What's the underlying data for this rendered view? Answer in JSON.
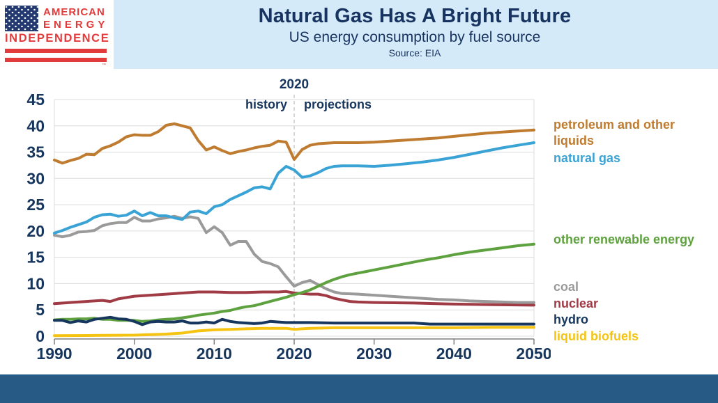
{
  "header": {
    "title": "Natural Gas Has A Bright Future",
    "subtitle": "US energy consumption by fuel source",
    "source": "Source: EIA",
    "background_color": "#d5eaf9",
    "title_color": "#17335f"
  },
  "logo": {
    "line1": "AMERICAN",
    "line2": "ENERGY",
    "line3": "INDEPENDENCE",
    "trademark": "™",
    "red": "#e23b3c",
    "navy": "#233a70"
  },
  "annotations": {
    "year_label": "2020",
    "left_label": "history",
    "right_label": "projections"
  },
  "footer": {
    "bar_color": "#275a84"
  },
  "chart_data": {
    "type": "line",
    "title": "US energy consumption by fuel source",
    "source": "Source: EIA",
    "xlabel": "",
    "ylabel": "",
    "xlim": [
      1990,
      2050
    ],
    "ylim": [
      0,
      45
    ],
    "x_ticks": [
      1990,
      2000,
      2010,
      2020,
      2030,
      2040,
      2050
    ],
    "y_ticks": [
      0,
      5,
      10,
      15,
      20,
      25,
      30,
      35,
      40,
      45
    ],
    "grid": "horizontal",
    "grid_color": "#dcdcdc",
    "axis_color": "#7f7f7f",
    "divider_x": 2020,
    "divider_color": "#c3c3c3",
    "legend_position": "right",
    "series": [
      {
        "name": "petroleum and other liquids",
        "color": "#bf7b2f",
        "points": [
          [
            1990,
            33.5
          ],
          [
            1991,
            32.9
          ],
          [
            1992,
            33.4
          ],
          [
            1993,
            33.8
          ],
          [
            1994,
            34.6
          ],
          [
            1995,
            34.5
          ],
          [
            1996,
            35.7
          ],
          [
            1997,
            36.2
          ],
          [
            1998,
            36.9
          ],
          [
            1999,
            37.9
          ],
          [
            2000,
            38.3
          ],
          [
            2001,
            38.2
          ],
          [
            2002,
            38.2
          ],
          [
            2003,
            38.9
          ],
          [
            2004,
            40.1
          ],
          [
            2005,
            40.4
          ],
          [
            2006,
            40.0
          ],
          [
            2007,
            39.6
          ],
          [
            2008,
            37.2
          ],
          [
            2009,
            35.4
          ],
          [
            2010,
            36.0
          ],
          [
            2011,
            35.3
          ],
          [
            2012,
            34.7
          ],
          [
            2013,
            35.1
          ],
          [
            2014,
            35.4
          ],
          [
            2015,
            35.8
          ],
          [
            2016,
            36.1
          ],
          [
            2017,
            36.3
          ],
          [
            2018,
            37.1
          ],
          [
            2019,
            36.9
          ],
          [
            2020,
            33.6
          ],
          [
            2021,
            35.5
          ],
          [
            2022,
            36.3
          ],
          [
            2023,
            36.6
          ],
          [
            2024,
            36.7
          ],
          [
            2025,
            36.8
          ],
          [
            2026,
            36.8
          ],
          [
            2028,
            36.8
          ],
          [
            2030,
            36.9
          ],
          [
            2032,
            37.1
          ],
          [
            2034,
            37.3
          ],
          [
            2036,
            37.5
          ],
          [
            2038,
            37.7
          ],
          [
            2040,
            38.0
          ],
          [
            2042,
            38.3
          ],
          [
            2044,
            38.6
          ],
          [
            2046,
            38.8
          ],
          [
            2048,
            39.0
          ],
          [
            2050,
            39.2
          ]
        ]
      },
      {
        "name": "natural gas",
        "color": "#3aa3d5",
        "points": [
          [
            1990,
            19.6
          ],
          [
            1991,
            20.1
          ],
          [
            1992,
            20.7
          ],
          [
            1993,
            21.2
          ],
          [
            1994,
            21.7
          ],
          [
            1995,
            22.6
          ],
          [
            1996,
            23.1
          ],
          [
            1997,
            23.2
          ],
          [
            1998,
            22.8
          ],
          [
            1999,
            23.0
          ],
          [
            2000,
            23.8
          ],
          [
            2001,
            22.9
          ],
          [
            2002,
            23.5
          ],
          [
            2003,
            22.9
          ],
          [
            2004,
            22.9
          ],
          [
            2005,
            22.5
          ],
          [
            2006,
            22.2
          ],
          [
            2007,
            23.6
          ],
          [
            2008,
            23.8
          ],
          [
            2009,
            23.3
          ],
          [
            2010,
            24.6
          ],
          [
            2011,
            25.0
          ],
          [
            2012,
            26.0
          ],
          [
            2013,
            26.7
          ],
          [
            2014,
            27.4
          ],
          [
            2015,
            28.2
          ],
          [
            2016,
            28.4
          ],
          [
            2017,
            28.0
          ],
          [
            2018,
            31.0
          ],
          [
            2019,
            32.3
          ],
          [
            2020,
            31.6
          ],
          [
            2021,
            30.2
          ],
          [
            2022,
            30.5
          ],
          [
            2023,
            31.1
          ],
          [
            2024,
            31.9
          ],
          [
            2025,
            32.3
          ],
          [
            2026,
            32.4
          ],
          [
            2028,
            32.4
          ],
          [
            2030,
            32.3
          ],
          [
            2032,
            32.5
          ],
          [
            2034,
            32.8
          ],
          [
            2036,
            33.1
          ],
          [
            2038,
            33.5
          ],
          [
            2040,
            34.0
          ],
          [
            2042,
            34.6
          ],
          [
            2044,
            35.2
          ],
          [
            2046,
            35.8
          ],
          [
            2048,
            36.3
          ],
          [
            2050,
            36.8
          ]
        ]
      },
      {
        "name": "other renewable energy",
        "color": "#5ea13f",
        "points": [
          [
            1990,
            3.1
          ],
          [
            1991,
            3.2
          ],
          [
            1992,
            3.2
          ],
          [
            1993,
            3.3
          ],
          [
            1994,
            3.3
          ],
          [
            1995,
            3.4
          ],
          [
            1996,
            3.2
          ],
          [
            1997,
            3.2
          ],
          [
            1998,
            3.0
          ],
          [
            1999,
            3.0
          ],
          [
            2000,
            3.0
          ],
          [
            2001,
            2.8
          ],
          [
            2002,
            2.9
          ],
          [
            2003,
            3.1
          ],
          [
            2004,
            3.2
          ],
          [
            2005,
            3.3
          ],
          [
            2006,
            3.5
          ],
          [
            2007,
            3.7
          ],
          [
            2008,
            4.0
          ],
          [
            2009,
            4.2
          ],
          [
            2010,
            4.4
          ],
          [
            2011,
            4.7
          ],
          [
            2012,
            4.9
          ],
          [
            2013,
            5.3
          ],
          [
            2014,
            5.6
          ],
          [
            2015,
            5.8
          ],
          [
            2016,
            6.2
          ],
          [
            2017,
            6.6
          ],
          [
            2018,
            7.0
          ],
          [
            2019,
            7.4
          ],
          [
            2020,
            7.9
          ],
          [
            2021,
            8.3
          ],
          [
            2022,
            8.8
          ],
          [
            2023,
            9.5
          ],
          [
            2024,
            10.2
          ],
          [
            2025,
            10.8
          ],
          [
            2026,
            11.3
          ],
          [
            2027,
            11.7
          ],
          [
            2028,
            12.0
          ],
          [
            2029,
            12.3
          ],
          [
            2030,
            12.6
          ],
          [
            2032,
            13.2
          ],
          [
            2034,
            13.8
          ],
          [
            2036,
            14.4
          ],
          [
            2038,
            14.9
          ],
          [
            2040,
            15.5
          ],
          [
            2042,
            16.0
          ],
          [
            2044,
            16.4
          ],
          [
            2046,
            16.8
          ],
          [
            2048,
            17.2
          ],
          [
            2050,
            17.5
          ]
        ]
      },
      {
        "name": "coal",
        "color": "#9a9a9a",
        "points": [
          [
            1990,
            19.2
          ],
          [
            1991,
            18.9
          ],
          [
            1992,
            19.2
          ],
          [
            1993,
            19.8
          ],
          [
            1994,
            19.9
          ],
          [
            1995,
            20.1
          ],
          [
            1996,
            21.0
          ],
          [
            1997,
            21.4
          ],
          [
            1998,
            21.6
          ],
          [
            1999,
            21.6
          ],
          [
            2000,
            22.6
          ],
          [
            2001,
            21.9
          ],
          [
            2002,
            21.9
          ],
          [
            2003,
            22.3
          ],
          [
            2004,
            22.5
          ],
          [
            2005,
            22.8
          ],
          [
            2006,
            22.4
          ],
          [
            2007,
            22.7
          ],
          [
            2008,
            22.4
          ],
          [
            2009,
            19.7
          ],
          [
            2010,
            20.8
          ],
          [
            2011,
            19.7
          ],
          [
            2012,
            17.3
          ],
          [
            2013,
            18.0
          ],
          [
            2014,
            18.0
          ],
          [
            2015,
            15.6
          ],
          [
            2016,
            14.2
          ],
          [
            2017,
            13.8
          ],
          [
            2018,
            13.2
          ],
          [
            2019,
            11.3
          ],
          [
            2020,
            9.5
          ],
          [
            2021,
            10.2
          ],
          [
            2022,
            10.6
          ],
          [
            2023,
            9.8
          ],
          [
            2024,
            9.0
          ],
          [
            2025,
            8.4
          ],
          [
            2026,
            8.1
          ],
          [
            2028,
            8.0
          ],
          [
            2030,
            7.8
          ],
          [
            2032,
            7.6
          ],
          [
            2034,
            7.4
          ],
          [
            2036,
            7.2
          ],
          [
            2038,
            7.0
          ],
          [
            2040,
            6.9
          ],
          [
            2042,
            6.7
          ],
          [
            2044,
            6.6
          ],
          [
            2046,
            6.5
          ],
          [
            2048,
            6.4
          ],
          [
            2050,
            6.4
          ]
        ]
      },
      {
        "name": "nuclear",
        "color": "#a03b45",
        "points": [
          [
            1990,
            6.2
          ],
          [
            1992,
            6.4
          ],
          [
            1994,
            6.6
          ],
          [
            1996,
            6.8
          ],
          [
            1997,
            6.6
          ],
          [
            1998,
            7.1
          ],
          [
            2000,
            7.6
          ],
          [
            2002,
            7.8
          ],
          [
            2004,
            8.0
          ],
          [
            2006,
            8.2
          ],
          [
            2008,
            8.4
          ],
          [
            2010,
            8.4
          ],
          [
            2012,
            8.3
          ],
          [
            2014,
            8.3
          ],
          [
            2016,
            8.4
          ],
          [
            2018,
            8.4
          ],
          [
            2019,
            8.5
          ],
          [
            2020,
            8.2
          ],
          [
            2022,
            8.0
          ],
          [
            2023,
            8.0
          ],
          [
            2024,
            7.7
          ],
          [
            2025,
            7.2
          ],
          [
            2026,
            6.9
          ],
          [
            2027,
            6.6
          ],
          [
            2028,
            6.5
          ],
          [
            2030,
            6.4
          ],
          [
            2035,
            6.3
          ],
          [
            2040,
            6.1
          ],
          [
            2045,
            6.0
          ],
          [
            2050,
            5.9
          ]
        ]
      },
      {
        "name": "hydro",
        "color": "#17365d",
        "points": [
          [
            1990,
            3.0
          ],
          [
            1991,
            3.0
          ],
          [
            1992,
            2.6
          ],
          [
            1993,
            2.9
          ],
          [
            1994,
            2.7
          ],
          [
            1995,
            3.2
          ],
          [
            1996,
            3.4
          ],
          [
            1997,
            3.6
          ],
          [
            1998,
            3.3
          ],
          [
            1999,
            3.2
          ],
          [
            2000,
            2.8
          ],
          [
            2001,
            2.2
          ],
          [
            2002,
            2.7
          ],
          [
            2003,
            2.8
          ],
          [
            2004,
            2.7
          ],
          [
            2005,
            2.7
          ],
          [
            2006,
            2.9
          ],
          [
            2007,
            2.5
          ],
          [
            2008,
            2.5
          ],
          [
            2009,
            2.7
          ],
          [
            2010,
            2.5
          ],
          [
            2011,
            3.2
          ],
          [
            2012,
            2.8
          ],
          [
            2013,
            2.6
          ],
          [
            2014,
            2.5
          ],
          [
            2015,
            2.4
          ],
          [
            2016,
            2.5
          ],
          [
            2017,
            2.8
          ],
          [
            2018,
            2.7
          ],
          [
            2019,
            2.6
          ],
          [
            2020,
            2.6
          ],
          [
            2022,
            2.6
          ],
          [
            2025,
            2.5
          ],
          [
            2030,
            2.5
          ],
          [
            2035,
            2.5
          ],
          [
            2037,
            2.3
          ],
          [
            2040,
            2.3
          ],
          [
            2045,
            2.3
          ],
          [
            2050,
            2.3
          ]
        ]
      },
      {
        "name": "liquid biofuels",
        "color": "#f5c413",
        "points": [
          [
            1990,
            0.1
          ],
          [
            1995,
            0.15
          ],
          [
            2000,
            0.2
          ],
          [
            2002,
            0.3
          ],
          [
            2004,
            0.4
          ],
          [
            2006,
            0.6
          ],
          [
            2008,
            1.0
          ],
          [
            2010,
            1.2
          ],
          [
            2012,
            1.3
          ],
          [
            2014,
            1.4
          ],
          [
            2016,
            1.5
          ],
          [
            2018,
            1.5
          ],
          [
            2019,
            1.5
          ],
          [
            2020,
            1.3
          ],
          [
            2021,
            1.4
          ],
          [
            2022,
            1.5
          ],
          [
            2025,
            1.6
          ],
          [
            2030,
            1.6
          ],
          [
            2035,
            1.6
          ],
          [
            2040,
            1.6
          ],
          [
            2045,
            1.7
          ],
          [
            2050,
            1.7
          ]
        ]
      }
    ]
  },
  "legend": {
    "items": [
      {
        "label": "petroleum and other liquids",
        "color": "#bf7b2f"
      },
      {
        "label": "natural gas",
        "color": "#3aa3d5"
      },
      {
        "label": "other renewable energy",
        "color": "#5ea13f"
      },
      {
        "label": "coal",
        "color": "#9a9a9a"
      },
      {
        "label": "nuclear",
        "color": "#a03b45"
      },
      {
        "label": "hydro",
        "color": "#17365d"
      },
      {
        "label": "liquid biofuels",
        "color": "#f5c413"
      }
    ]
  }
}
